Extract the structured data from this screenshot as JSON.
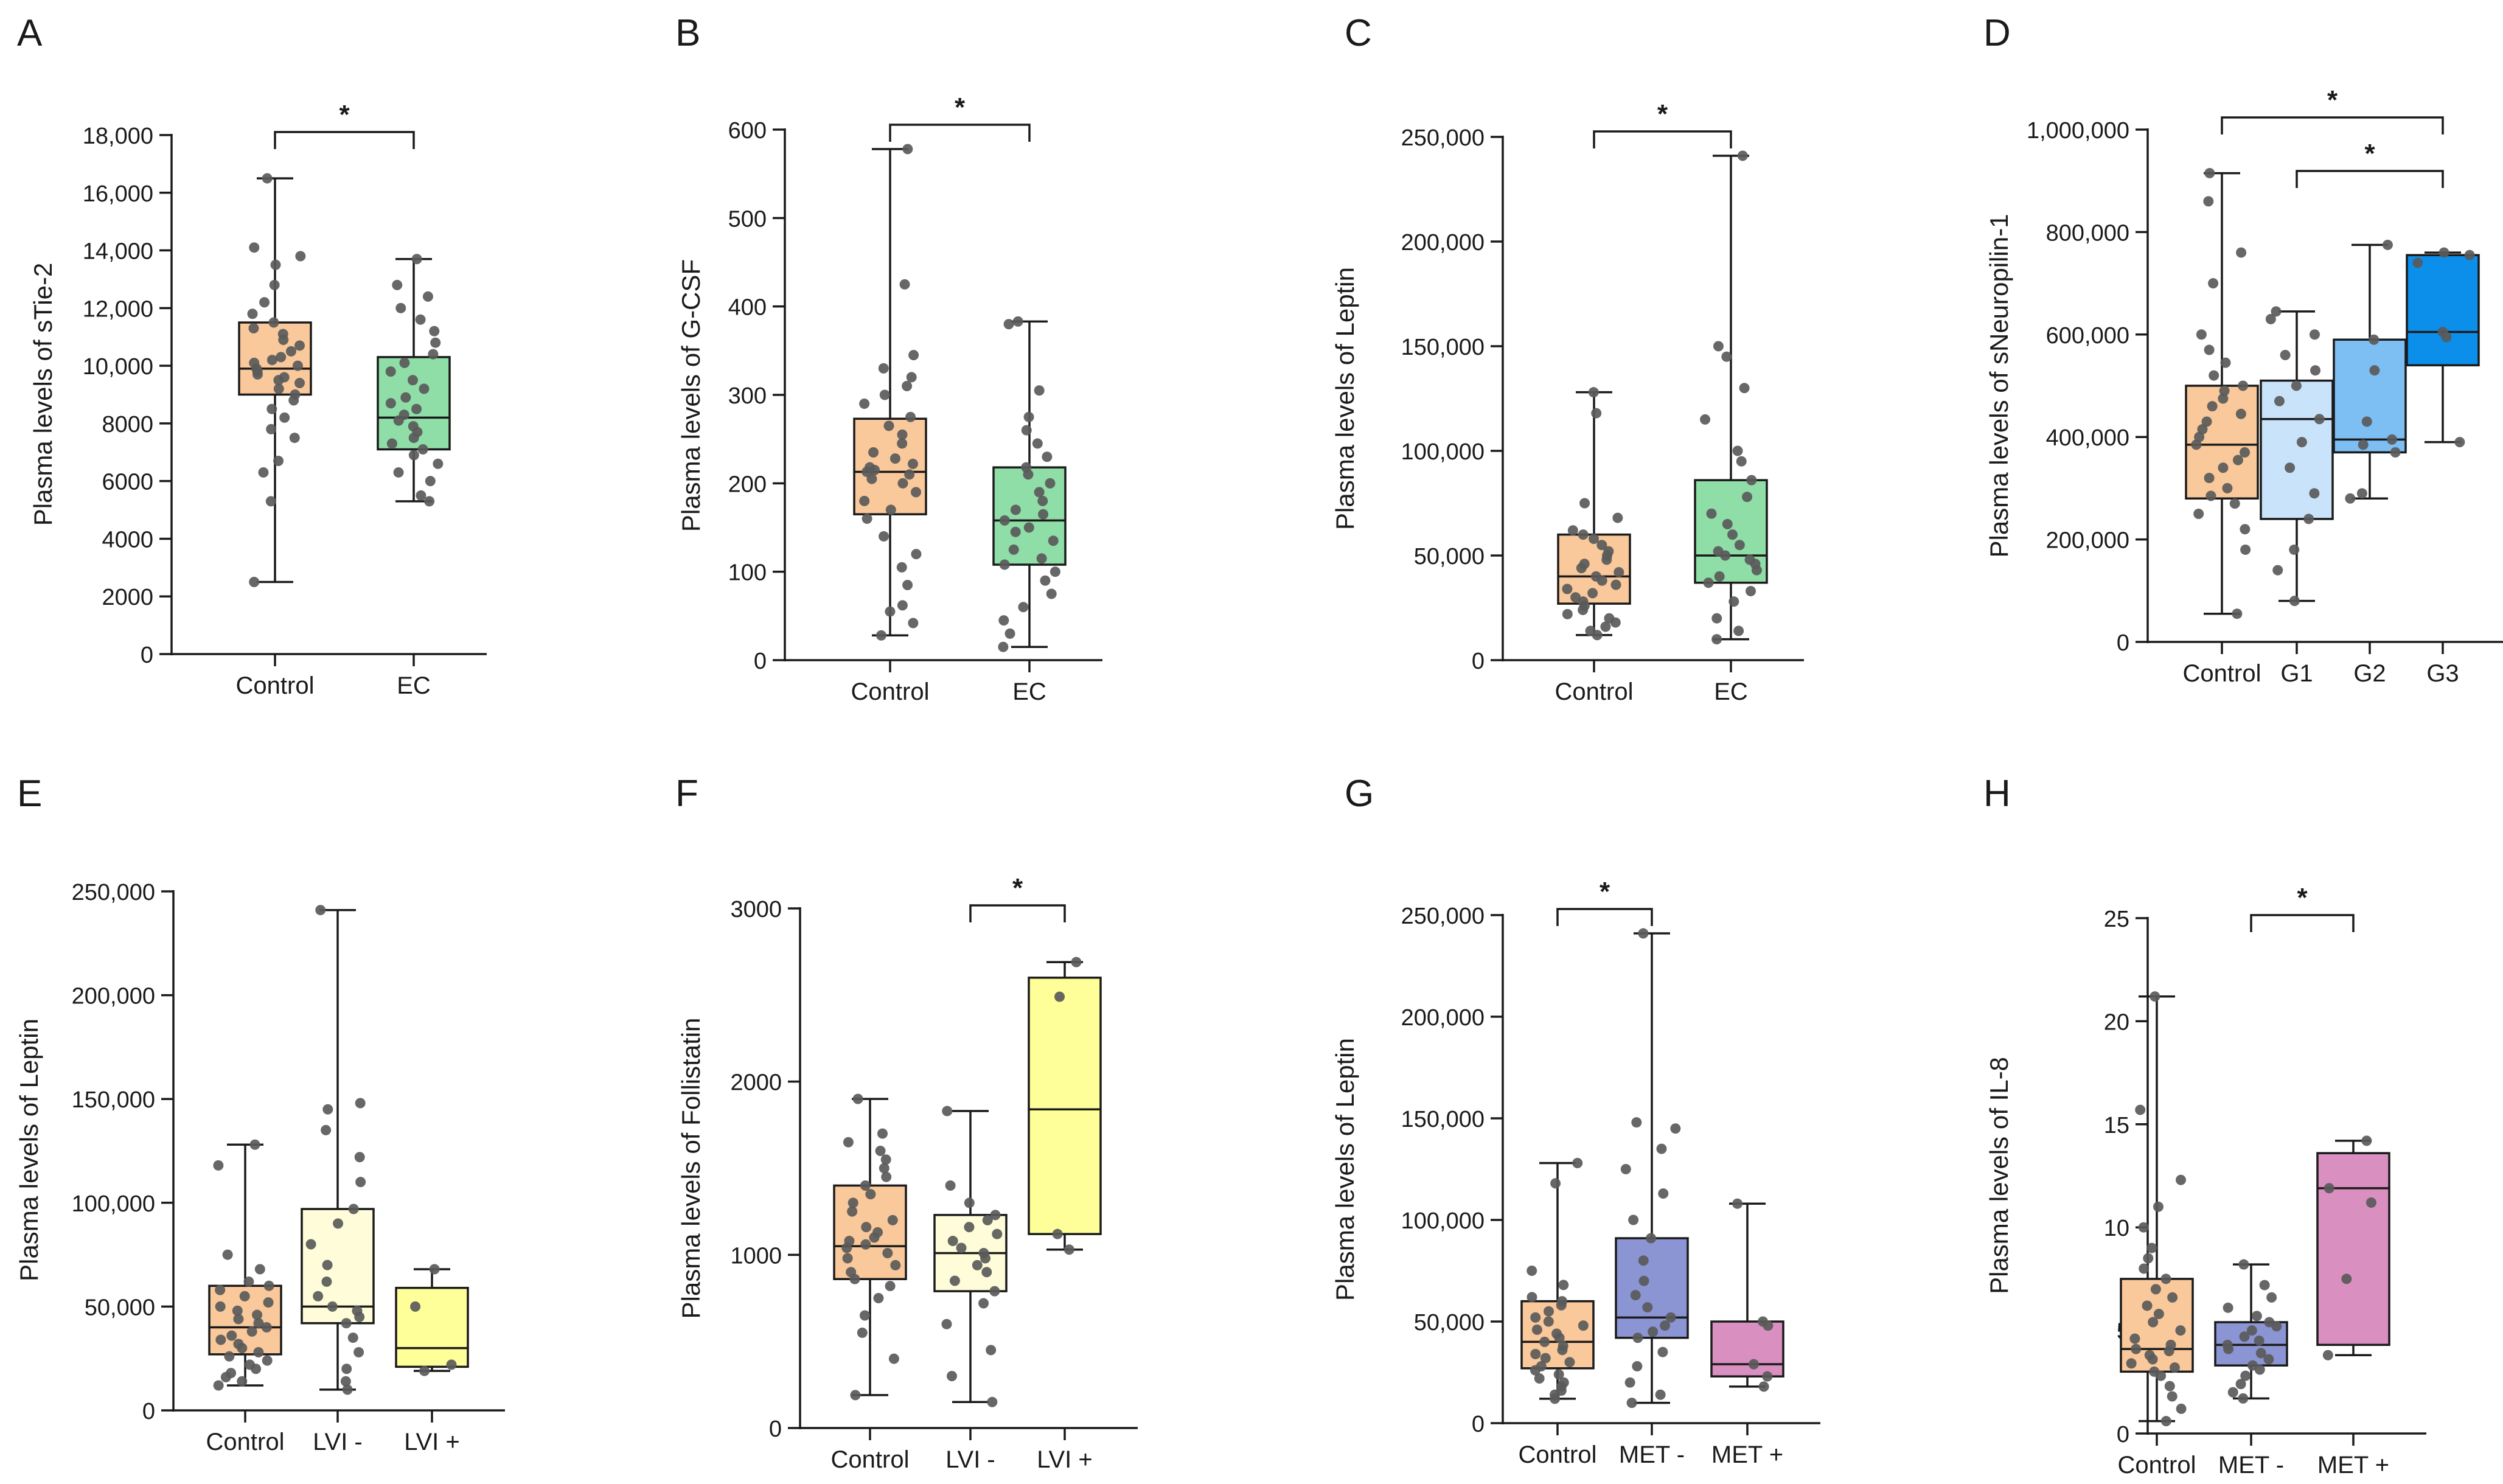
{
  "chart_data": [
    {
      "panel": "A",
      "type": "box",
      "ylabel": "Plasma levels of sTie-2",
      "ylim": [
        0,
        18000
      ],
      "yticks": [
        0,
        2000,
        4000,
        6000,
        8000,
        10000,
        12000,
        14000,
        16000,
        18000
      ],
      "ytick_labels": [
        "0",
        "2000",
        "4000",
        "6000",
        "8000",
        "10,000",
        "12,000",
        "14,000",
        "16,000",
        "18,000"
      ],
      "categories": [
        "Control",
        "EC"
      ],
      "series": [
        {
          "name": "Control",
          "color": "#F9C89B",
          "min": 2500,
          "q1": 9000,
          "median": 9900,
          "q3": 11500,
          "max": 16500,
          "points": [
            2500,
            5300,
            6300,
            6700,
            7500,
            7800,
            8200,
            8500,
            8800,
            9000,
            9200,
            9400,
            9500,
            9600,
            9700,
            9800,
            9900,
            10000,
            10100,
            10200,
            10300,
            10500,
            10700,
            10900,
            11100,
            11300,
            11500,
            11800,
            12200,
            12800,
            13500,
            13800,
            14100,
            16500
          ]
        },
        {
          "name": "EC",
          "color": "#8FDDA7",
          "min": 5300,
          "q1": 7100,
          "median": 8200,
          "q3": 10300,
          "max": 13700,
          "points": [
            5300,
            5500,
            6000,
            6300,
            6600,
            6900,
            7100,
            7300,
            7500,
            7700,
            7900,
            8100,
            8300,
            8500,
            8700,
            8900,
            9200,
            9500,
            9800,
            10100,
            10400,
            10800,
            11200,
            11600,
            12000,
            12400,
            12800,
            13700
          ]
        }
      ],
      "significance": [
        {
          "from": 0,
          "to": 1,
          "label": "*"
        }
      ]
    },
    {
      "panel": "B",
      "type": "box",
      "ylabel": "Plasma levels of G-CSF",
      "ylim": [
        0,
        600
      ],
      "yticks": [
        0,
        100,
        200,
        300,
        400,
        500,
        600
      ],
      "ytick_labels": [
        "0",
        "100",
        "200",
        "300",
        "400",
        "500",
        "600"
      ],
      "categories": [
        "Control",
        "EC"
      ],
      "series": [
        {
          "name": "Control",
          "color": "#F9C89B",
          "min": 28,
          "q1": 165,
          "median": 213,
          "q3": 273,
          "max": 578,
          "points": [
            28,
            42,
            55,
            62,
            85,
            105,
            120,
            140,
            160,
            170,
            180,
            190,
            200,
            205,
            210,
            213,
            215,
            218,
            222,
            228,
            235,
            245,
            255,
            265,
            275,
            290,
            300,
            310,
            320,
            330,
            345,
            425,
            578
          ]
        },
        {
          "name": "EC",
          "color": "#8FDDA7",
          "min": 15,
          "q1": 108,
          "median": 158,
          "q3": 218,
          "max": 383,
          "points": [
            15,
            30,
            45,
            60,
            75,
            90,
            100,
            108,
            115,
            125,
            135,
            145,
            150,
            158,
            165,
            170,
            180,
            190,
            200,
            210,
            218,
            230,
            245,
            260,
            275,
            305,
            380,
            383
          ]
        }
      ],
      "significance": [
        {
          "from": 0,
          "to": 1,
          "label": "*"
        }
      ]
    },
    {
      "panel": "C",
      "type": "box",
      "ylabel": "Plasma levels of Leptin",
      "ylim": [
        0,
        250000
      ],
      "yticks": [
        0,
        50000,
        100000,
        150000,
        200000,
        250000
      ],
      "ytick_labels": [
        "0",
        "50,000",
        "100,000",
        "150,000",
        "200,000",
        "250,000"
      ],
      "categories": [
        "Control",
        "EC"
      ],
      "series": [
        {
          "name": "Control",
          "color": "#F9C89B",
          "min": 12000,
          "q1": 27000,
          "median": 40000,
          "q3": 60000,
          "max": 128000,
          "points": [
            12000,
            14000,
            16000,
            18000,
            20000,
            22000,
            24000,
            26000,
            28000,
            30000,
            32000,
            34000,
            36000,
            38000,
            40000,
            42000,
            44000,
            46000,
            48000,
            50000,
            52000,
            55000,
            58000,
            60000,
            62000,
            68000,
            75000,
            118000,
            128000
          ]
        },
        {
          "name": "EC",
          "color": "#8FDDA7",
          "min": 10000,
          "q1": 37000,
          "median": 50000,
          "q3": 86000,
          "max": 241000,
          "points": [
            10000,
            14000,
            20000,
            28000,
            33000,
            37000,
            40000,
            43000,
            46000,
            48000,
            50000,
            52000,
            55000,
            60000,
            65000,
            70000,
            78000,
            86000,
            95000,
            100000,
            115000,
            130000,
            145000,
            150000,
            241000
          ]
        }
      ],
      "significance": [
        {
          "from": 0,
          "to": 1,
          "label": "*"
        }
      ]
    },
    {
      "panel": "D",
      "type": "box",
      "ylabel": "Plasma levels of sNeuropilin-1",
      "ylim": [
        0,
        1000000
      ],
      "yticks": [
        0,
        200000,
        400000,
        600000,
        800000,
        1000000
      ],
      "ytick_labels": [
        "0",
        "200,000",
        "400,000",
        "600,000",
        "800,000",
        "1,000,000"
      ],
      "categories": [
        "Control",
        "G1",
        "G2",
        "G3"
      ],
      "series": [
        {
          "name": "Control",
          "color": "#F9C89B",
          "min": 55000,
          "q1": 280000,
          "median": 385000,
          "q3": 500000,
          "max": 915000,
          "points": [
            55000,
            180000,
            220000,
            250000,
            270000,
            285000,
            300000,
            320000,
            340000,
            355000,
            370000,
            385000,
            400000,
            415000,
            430000,
            445000,
            460000,
            475000,
            490000,
            500000,
            520000,
            545000,
            570000,
            600000,
            700000,
            760000,
            860000,
            915000
          ]
        },
        {
          "name": "G1",
          "color": "#C9E3FB",
          "min": 80000,
          "q1": 240000,
          "median": 435000,
          "q3": 510000,
          "max": 645000,
          "points": [
            80000,
            140000,
            180000,
            240000,
            290000,
            340000,
            390000,
            435000,
            470000,
            500000,
            530000,
            560000,
            600000,
            630000,
            645000
          ]
        },
        {
          "name": "G2",
          "color": "#7DBEF3",
          "min": 280000,
          "q1": 370000,
          "median": 395000,
          "q3": 590000,
          "max": 775000,
          "points": [
            280000,
            290000,
            370000,
            385000,
            395000,
            430000,
            530000,
            590000,
            775000
          ]
        },
        {
          "name": "G3",
          "color": "#0B8FEA",
          "min": 390000,
          "q1": 540000,
          "median": 605000,
          "q3": 755000,
          "max": 760000,
          "points": [
            390000,
            595000,
            605000,
            740000,
            755000,
            760000
          ]
        }
      ],
      "significance": [
        {
          "from": 0,
          "to": 3,
          "label": "*"
        },
        {
          "from": 1,
          "to": 3,
          "label": "*"
        }
      ]
    },
    {
      "panel": "E",
      "type": "box",
      "ylabel": "Plasma levels of Leptin",
      "ylim": [
        0,
        250000
      ],
      "yticks": [
        0,
        50000,
        100000,
        150000,
        200000,
        250000
      ],
      "ytick_labels": [
        "0",
        "50,000",
        "100,000",
        "150,000",
        "200,000",
        "250,000"
      ],
      "categories": [
        "Control",
        "LVI -",
        "LVI +"
      ],
      "series": [
        {
          "name": "Control",
          "color": "#F9C89B",
          "min": 12000,
          "q1": 27000,
          "median": 40000,
          "q3": 60000,
          "max": 128000,
          "points": [
            12000,
            14000,
            16000,
            18000,
            20000,
            22000,
            24000,
            26000,
            28000,
            30000,
            32000,
            34000,
            36000,
            38000,
            40000,
            42000,
            44000,
            46000,
            48000,
            50000,
            52000,
            55000,
            58000,
            60000,
            62000,
            68000,
            75000,
            118000,
            128000
          ]
        },
        {
          "name": "LVI -",
          "color": "#FFFDD9",
          "min": 10000,
          "q1": 42000,
          "median": 50000,
          "q3": 97000,
          "max": 241000,
          "points": [
            10000,
            14000,
            20000,
            28000,
            35000,
            42000,
            45000,
            48000,
            50000,
            55000,
            62000,
            70000,
            80000,
            90000,
            97000,
            110000,
            122000,
            135000,
            145000,
            148000,
            241000
          ]
        },
        {
          "name": "LVI +",
          "color": "#FFFF99",
          "min": 19000,
          "q1": 21000,
          "median": 30000,
          "q3": 59000,
          "max": 68000,
          "points": [
            19000,
            22000,
            50000,
            68000
          ]
        }
      ],
      "significance": []
    },
    {
      "panel": "F",
      "type": "box",
      "ylabel": "Plasma levels of Follistatin",
      "ylim": [
        0,
        3000
      ],
      "yticks": [
        0,
        1000,
        2000,
        3000
      ],
      "ytick_labels": [
        "0",
        "1000",
        "2000",
        "3000"
      ],
      "categories": [
        "Control",
        "LVI -",
        "LVI +"
      ],
      "series": [
        {
          "name": "Control",
          "color": "#F9C89B",
          "min": 190,
          "q1": 860,
          "median": 1050,
          "q3": 1400,
          "max": 1900,
          "points": [
            190,
            400,
            550,
            650,
            750,
            820,
            860,
            900,
            940,
            980,
            1010,
            1040,
            1060,
            1080,
            1100,
            1130,
            1160,
            1200,
            1250,
            1300,
            1350,
            1400,
            1450,
            1500,
            1550,
            1600,
            1650,
            1700,
            1900
          ]
        },
        {
          "name": "LVI -",
          "color": "#FFFDD9",
          "min": 150,
          "q1": 790,
          "median": 1010,
          "q3": 1230,
          "max": 1830,
          "points": [
            150,
            300,
            450,
            600,
            720,
            790,
            850,
            900,
            940,
            980,
            1010,
            1040,
            1080,
            1120,
            1160,
            1200,
            1230,
            1300,
            1400,
            1830
          ]
        },
        {
          "name": "LVI +",
          "color": "#FFFF99",
          "min": 1030,
          "q1": 1120,
          "median": 1840,
          "q3": 2600,
          "max": 2690,
          "points": [
            1030,
            1120,
            2490,
            2690
          ]
        }
      ],
      "significance": [
        {
          "from": 1,
          "to": 2,
          "label": "*"
        }
      ]
    },
    {
      "panel": "G",
      "type": "box",
      "ylabel": "Plasma levels of Leptin",
      "ylim": [
        0,
        250000
      ],
      "yticks": [
        0,
        50000,
        100000,
        150000,
        200000,
        250000
      ],
      "ytick_labels": [
        "0",
        "50,000",
        "100,000",
        "150,000",
        "200,000",
        "250,000"
      ],
      "categories": [
        "Control",
        "MET -",
        "MET +"
      ],
      "series": [
        {
          "name": "Control",
          "color": "#F9C89B",
          "min": 12000,
          "q1": 27000,
          "median": 40000,
          "q3": 60000,
          "max": 128000,
          "points": [
            12000,
            14000,
            16000,
            18000,
            20000,
            22000,
            24000,
            26000,
            28000,
            30000,
            32000,
            34000,
            36000,
            38000,
            40000,
            42000,
            44000,
            46000,
            48000,
            50000,
            52000,
            55000,
            58000,
            60000,
            62000,
            68000,
            75000,
            118000,
            128000
          ]
        },
        {
          "name": "MET -",
          "color": "#8C95D3",
          "min": 10000,
          "q1": 42000,
          "median": 52000,
          "q3": 91000,
          "max": 241000,
          "points": [
            10000,
            14000,
            20000,
            28000,
            35000,
            42000,
            45000,
            48000,
            52000,
            57000,
            63000,
            70000,
            80000,
            91000,
            100000,
            113000,
            125000,
            135000,
            145000,
            148000,
            241000
          ]
        },
        {
          "name": "MET +",
          "color": "#D98FC0",
          "min": 18000,
          "q1": 23000,
          "median": 29000,
          "q3": 50000,
          "max": 108000,
          "points": [
            18000,
            23000,
            29000,
            48000,
            50000,
            108000
          ]
        }
      ],
      "significance": [
        {
          "from": 0,
          "to": 1,
          "label": "*"
        }
      ]
    },
    {
      "panel": "H",
      "type": "box",
      "ylabel": "Plasma levels of IL-8",
      "ylim": [
        0,
        25
      ],
      "yticks": [
        0,
        5,
        10,
        15,
        20,
        25
      ],
      "ytick_labels": [
        "0",
        "5",
        "10",
        "15",
        "20",
        "25"
      ],
      "categories": [
        "Control",
        "MET -",
        "MET +"
      ],
      "series": [
        {
          "name": "Control",
          "color": "#F9C89B",
          "min": 0.6,
          "q1": 3.0,
          "median": 4.1,
          "q3": 7.5,
          "max": 21.2,
          "points": [
            0.6,
            1.2,
            1.8,
            2.3,
            2.8,
            3.0,
            3.2,
            3.4,
            3.6,
            3.8,
            4.0,
            4.1,
            4.3,
            4.6,
            5.0,
            5.4,
            5.8,
            6.2,
            6.6,
            7.0,
            7.5,
            8.0,
            8.5,
            9.0,
            10.0,
            11.0,
            12.3,
            15.7,
            21.2
          ]
        },
        {
          "name": "MET -",
          "color": "#8C95D3",
          "min": 1.7,
          "q1": 3.3,
          "median": 4.3,
          "q3": 5.4,
          "max": 8.2,
          "points": [
            1.7,
            2.0,
            2.4,
            2.8,
            3.1,
            3.3,
            3.6,
            3.9,
            4.1,
            4.3,
            4.5,
            4.7,
            5.0,
            5.2,
            5.4,
            5.7,
            6.1,
            6.6,
            7.2,
            8.2
          ]
        },
        {
          "name": "MET +",
          "color": "#D98FC0",
          "min": 3.8,
          "q1": 4.3,
          "median": 11.9,
          "q3": 13.6,
          "max": 14.2,
          "points": [
            3.8,
            7.5,
            11.2,
            11.9,
            14.2
          ]
        }
      ],
      "significance": [
        {
          "from": 1,
          "to": 2,
          "label": "*"
        }
      ]
    }
  ]
}
